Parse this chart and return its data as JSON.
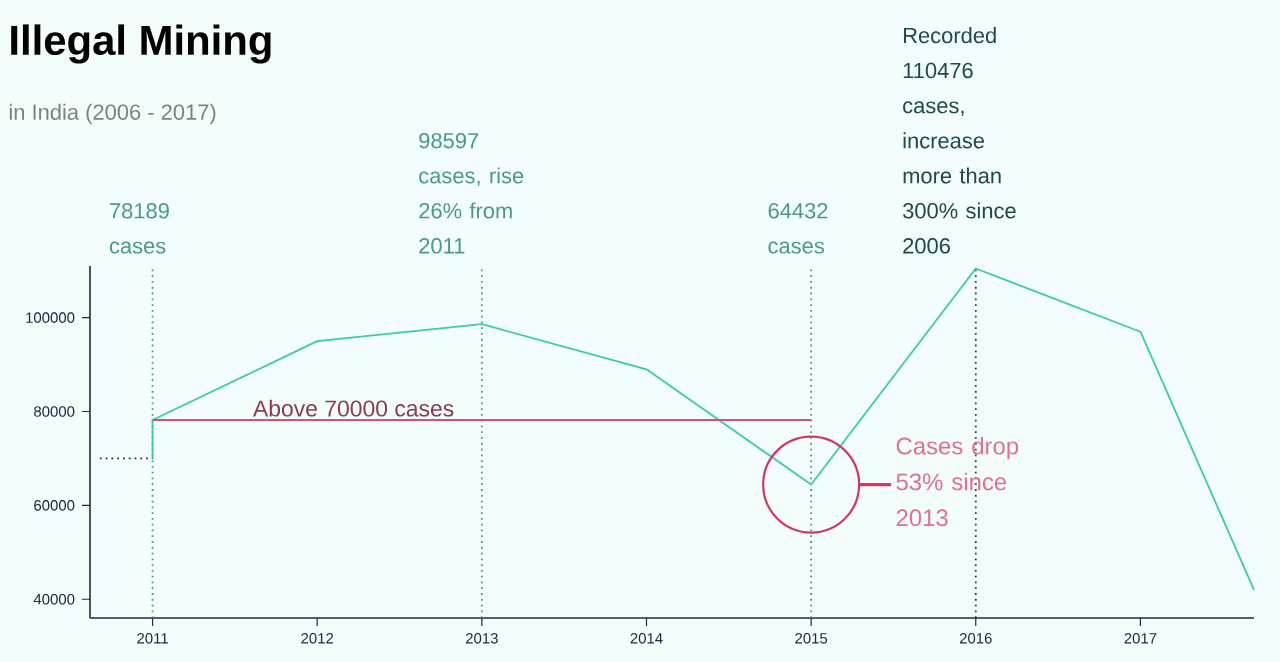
{
  "chart_data": {
    "type": "line",
    "title": "Illegal Mining",
    "subtitle": "in India (2006 - 2017)",
    "series": [
      {
        "color": "#3ccbaa",
        "x": [
          2011,
          2011,
          2012,
          2013,
          2014,
          2015,
          2016,
          2017,
          2017.69
        ],
        "values": [
          70000,
          78189,
          95000,
          98597,
          89000,
          64432,
          110476,
          97000,
          42000
        ]
      },
      {
        "color": "#c8587a",
        "x": [
          2011,
          2015
        ],
        "values": [
          78189,
          78189
        ]
      },
      {
        "color": "#1d3a3a",
        "line_style": "dotted",
        "x": [
          2010.68,
          2011
        ],
        "values": [
          70000,
          70000
        ]
      }
    ],
    "xlim": [
      2010.62,
      2017.69
    ],
    "ylim": [
      36000,
      111000
    ],
    "xticks": [
      2011,
      2012,
      2013,
      2014,
      2015,
      2016,
      2017
    ],
    "yticks": [
      40000,
      60000,
      80000,
      100000
    ],
    "line_style": "solid",
    "ref_lines": [
      {
        "axis": "x",
        "value": 2011,
        "label": "78189 cases",
        "color": "#4a9a8a",
        "line_style": "dotted"
      },
      {
        "axis": "x",
        "value": 2013,
        "label": "98597 cases, rise 26% from 2011",
        "color": "#4a9a8a",
        "line_style": "dotted"
      },
      {
        "axis": "x",
        "value": 2015,
        "label": "64432 cases",
        "color": "#4a9a8a",
        "line_style": "dotted"
      },
      {
        "axis": "x",
        "value": 2016,
        "label": "Recorded 110476 cases, increase more than 300% since 2006",
        "color": "#1d4a4a",
        "line_style": "dotted"
      }
    ],
    "annotations": [
      "Above 70000 cases",
      "Cases drop 53% since 2013"
    ]
  }
}
